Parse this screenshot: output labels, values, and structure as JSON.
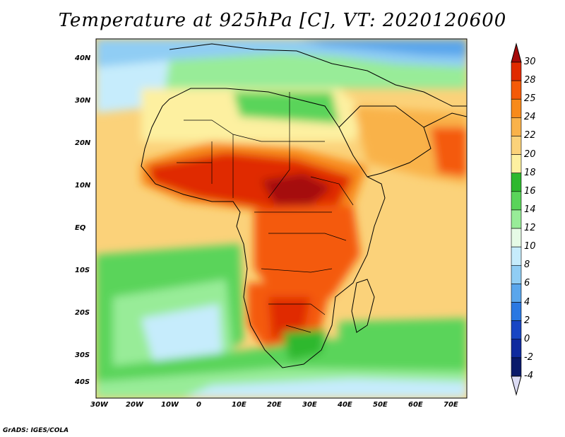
{
  "title": "Temperature at 925hPa [C], VT: 2020120600",
  "credit": "GrADS: IGES/COLA",
  "map": {
    "lon_range": [
      -30,
      75
    ],
    "lat_range": [
      -40,
      45
    ],
    "lat_ticks": [
      "40N",
      "30N",
      "20N",
      "10N",
      "EQ",
      "10S",
      "20S",
      "30S",
      "40S"
    ],
    "lon_ticks": [
      "30W",
      "20W",
      "10W",
      "0",
      "10E",
      "20E",
      "30E",
      "40E",
      "50E",
      "60E",
      "70E"
    ]
  },
  "colorbar": {
    "labels": [
      "30",
      "28",
      "25",
      "24",
      "22",
      "20",
      "18",
      "16",
      "14",
      "12",
      "10",
      "8",
      "6",
      "4",
      "2",
      "0",
      "-2",
      "-4"
    ],
    "colors": [
      "#a50a0a",
      "#e02a00",
      "#f45a08",
      "#f88a1a",
      "#f9b24a",
      "#fbd27a",
      "#fdf0a0",
      "#2eb82e",
      "#5ad45a",
      "#98ec98",
      "#e6fbe6",
      "#c6ecfc",
      "#90cdf4",
      "#5aa6ec",
      "#2a78e2",
      "#1846c4",
      "#0f2a9e",
      "#0a1a6a",
      "#dcdcf4"
    ]
  }
}
